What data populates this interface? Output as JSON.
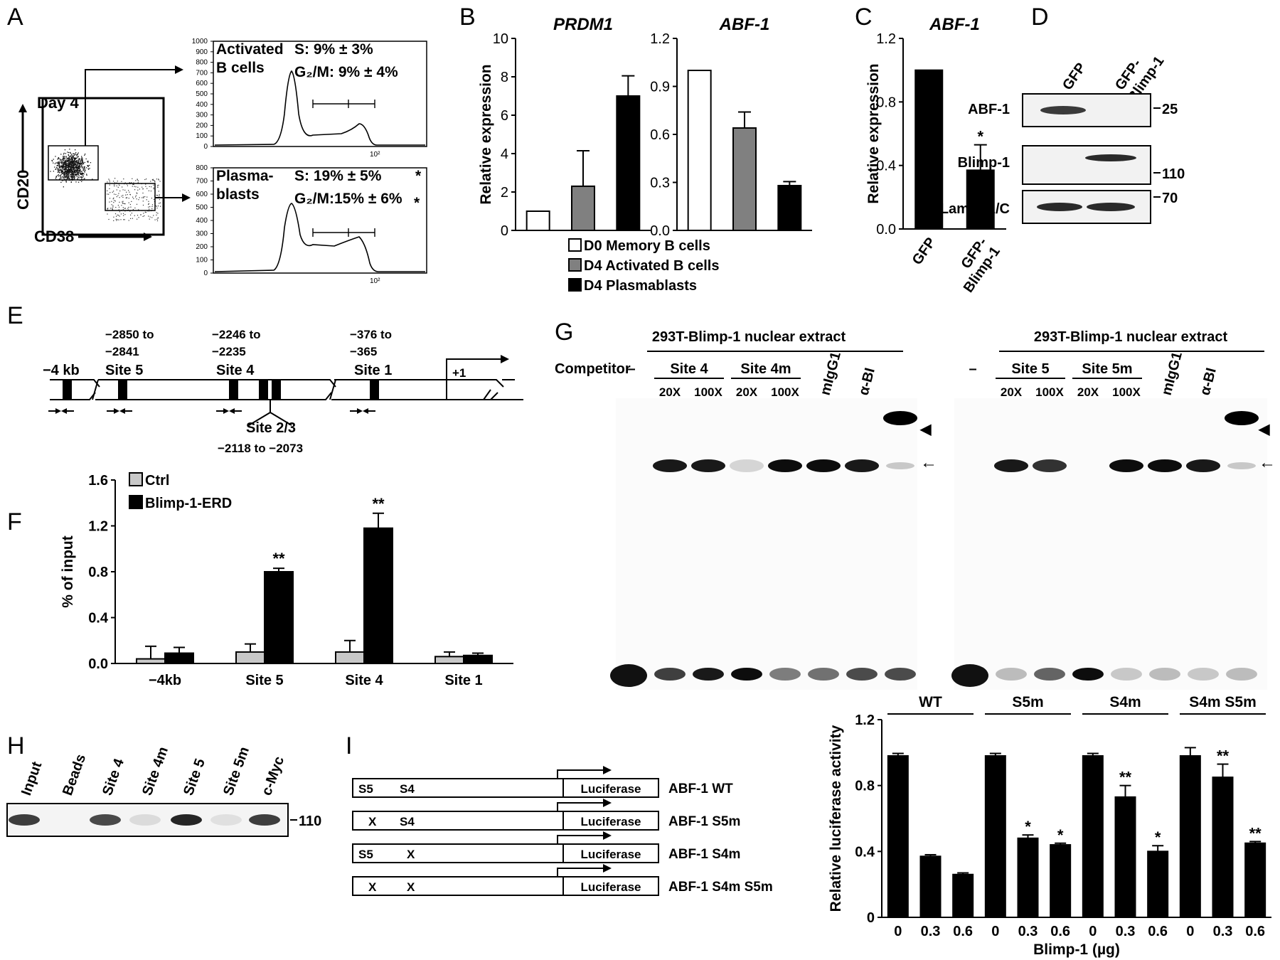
{
  "panel_labels": [
    "A",
    "B",
    "C",
    "D",
    "E",
    "F",
    "G",
    "H",
    "I"
  ],
  "panelA": {
    "day": "Day 4",
    "x_marker": "CD38",
    "y_marker": "CD20",
    "top": {
      "label1": "Activated",
      "label2": "B cells",
      "s": "S: 9% ± 3%",
      "g2m": "G₂/M: 9% ± 4%",
      "yticks": [
        "0",
        "100",
        "200",
        "300",
        "400",
        "500",
        "600",
        "700",
        "800",
        "900",
        "1000"
      ],
      "xtick": "10²"
    },
    "bottom": {
      "label1": "Plasma-",
      "label2": "blasts",
      "s": "S: 19% ± 5%",
      "g2m": "G₂/M:15% ± 6%",
      "star": "*",
      "yticks": [
        "0",
        "100",
        "200",
        "300",
        "400",
        "500",
        "600",
        "700",
        "800"
      ],
      "xtick": "10²"
    }
  },
  "panelB_legend": [
    "D0 Memory B cells",
    "D4 Activated B cells",
    "D4 Plasmablasts"
  ],
  "panelD": {
    "lanes": [
      "GFP",
      "GFP-\nBlimp-1"
    ],
    "rows": [
      {
        "name": "ABF-1",
        "mw": "25"
      },
      {
        "name": "Blimp-1",
        "mw": "110"
      },
      {
        "name": "Lamin A/C",
        "mw": "70"
      }
    ]
  },
  "panelE": {
    "sites": [
      {
        "name": "Site 5",
        "range1": "−2850 to",
        "range2": "−2841"
      },
      {
        "name": "Site 4",
        "range1": "−2246 to",
        "range2": "−2235"
      },
      {
        "name": "Site 1",
        "range1": "−376 to",
        "range2": "−365"
      }
    ],
    "kb": "−4 kb",
    "tss": "+1",
    "site23": "Site 2/3",
    "site23_range": "−2118 to −2073"
  },
  "panelG": {
    "extract_title": "293T-Blimp-1 nuclear extract",
    "competitor_label": "Competitor",
    "left": {
      "groups": [
        "–",
        "Site 4",
        "Site 4m",
        "mIgG1",
        "α-BI"
      ],
      "sub": [
        "20X",
        "100X",
        "20X",
        "100X"
      ]
    },
    "right": {
      "groups": [
        "–",
        "Site 5",
        "Site 5m",
        "mIgG1",
        "α-BI"
      ],
      "sub": [
        "20X",
        "100X",
        "20X",
        "100X"
      ]
    },
    "arrowhead": "◀",
    "arrow": "←"
  },
  "panelH": {
    "lanes": [
      "Input",
      "Beads",
      "Site 4",
      "Site 4m",
      "Site 5",
      "Site 5m",
      "c-Myc"
    ],
    "mw": "110"
  },
  "panelI": {
    "constructs": [
      {
        "name": "ABF-1 WT",
        "s5": "S5",
        "s4": "S4"
      },
      {
        "name": "ABF-1 S5m",
        "s5": "X",
        "s4": "S4"
      },
      {
        "name": "ABF-1 S4m",
        "s5": "S5",
        "s4": "X"
      },
      {
        "name": "ABF-1 S4m S5m",
        "s5": "X",
        "s4": "X"
      }
    ],
    "reporter": "Luciferase"
  },
  "chart_data": [
    {
      "id": "B1",
      "type": "bar",
      "title": "PRDM1",
      "ylabel": "Relative expression",
      "categories": [
        "D0 Memory B cells",
        "D4 Activated B cells",
        "D4 Plasmablasts"
      ],
      "values": [
        1.0,
        2.3,
        7.0
      ],
      "errors": [
        0,
        1.85,
        1.05
      ],
      "colors": [
        "#ffffff",
        "#808080",
        "#000000"
      ],
      "ylim": [
        0,
        10
      ],
      "yticks": [
        0,
        2,
        4,
        6,
        8,
        10
      ]
    },
    {
      "id": "B2",
      "type": "bar",
      "title": "ABF-1",
      "categories": [
        "D0 Memory B cells",
        "D4 Activated B cells",
        "D4 Plasmablasts"
      ],
      "values": [
        1.0,
        0.64,
        0.28
      ],
      "errors": [
        0,
        0.1,
        0.025
      ],
      "colors": [
        "#ffffff",
        "#808080",
        "#000000"
      ],
      "ylim": [
        0,
        1.2
      ],
      "yticks": [
        0.0,
        0.3,
        0.6,
        0.9,
        1.2
      ]
    },
    {
      "id": "C",
      "type": "bar",
      "title": "ABF-1",
      "ylabel": "Relative expression",
      "categories": [
        "GFP",
        "GFP-\nBlimp-1"
      ],
      "values": [
        1.0,
        0.37
      ],
      "errors": [
        0,
        0.16
      ],
      "colors": [
        "#000000",
        "#000000"
      ],
      "annotations": [
        "",
        "*"
      ],
      "ylim": [
        0,
        1.2
      ],
      "yticks": [
        0.0,
        0.4,
        0.8,
        1.2
      ]
    },
    {
      "id": "F",
      "type": "bar",
      "ylabel": "% of input",
      "categories": [
        "−4kb",
        "Site 5",
        "Site 4",
        "Site 1"
      ],
      "series": [
        {
          "name": "Ctrl",
          "color": "#c8c8c8",
          "values": [
            0.04,
            0.1,
            0.1,
            0.06
          ],
          "errors": [
            0.11,
            0.07,
            0.1,
            0.04
          ]
        },
        {
          "name": "Blimp-1-ERD",
          "color": "#000000",
          "values": [
            0.09,
            0.8,
            1.18,
            0.07
          ],
          "errors": [
            0.05,
            0.03,
            0.13,
            0.02
          ],
          "annotations": [
            "",
            "**",
            "**",
            ""
          ]
        }
      ],
      "ylim": [
        0,
        1.6
      ],
      "yticks": [
        0.0,
        0.4,
        0.8,
        1.2,
        1.6
      ]
    },
    {
      "id": "I",
      "type": "bar",
      "ylabel": "Relative luciferase activity",
      "xlabel": "Blimp-1 (µg)",
      "groups": [
        "WT",
        "S5m",
        "S4m",
        "S4m S5m"
      ],
      "doses": [
        "0",
        "0.3",
        "0.6"
      ],
      "values": [
        [
          0.98,
          0.37,
          0.26
        ],
        [
          0.98,
          0.48,
          0.44
        ],
        [
          0.98,
          0.73,
          0.4
        ],
        [
          0.98,
          0.85,
          0.45
        ]
      ],
      "errors": [
        [
          0.015,
          0.01,
          0.01
        ],
        [
          0.015,
          0.02,
          0.01
        ],
        [
          0.015,
          0.07,
          0.035
        ],
        [
          0.05,
          0.08,
          0.01
        ]
      ],
      "annotations": [
        [
          "",
          "",
          ""
        ],
        [
          "",
          "*",
          "*"
        ],
        [
          "",
          "**",
          "*"
        ],
        [
          "",
          "**",
          "**"
        ]
      ],
      "ylim": [
        0,
        1.2
      ],
      "yticks": [
        0,
        0.4,
        0.8,
        1.2
      ]
    }
  ]
}
